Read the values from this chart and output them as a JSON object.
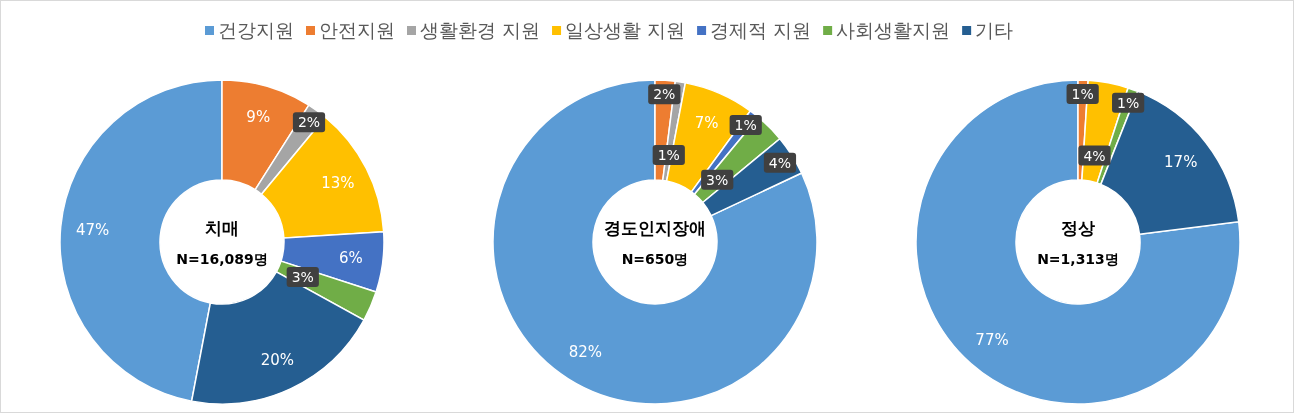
{
  "chart_data": [
    {
      "type": "donut",
      "title": "치매",
      "subtitle": "N=16,089명",
      "legend": "top",
      "categories": [
        "건강지원",
        "안전지원",
        "생활환경 지원",
        "일상생활 지원",
        "경제적 지원",
        "사회생활지원",
        "기타"
      ],
      "values": [
        47,
        9,
        2,
        13,
        6,
        3,
        20
      ],
      "colors": [
        "#5b9bd5",
        "#ed7d31",
        "#a5a5a5",
        "#ffc000",
        "#4472c4",
        "#70ad47",
        "#255e91"
      ],
      "value_labels": [
        "47%",
        "9%",
        "2%",
        "13%",
        "6%",
        "3%",
        "20%"
      ]
    },
    {
      "type": "donut",
      "title": "경도인지장애",
      "subtitle": "N=650명",
      "categories": [
        null,
        null,
        null,
        null,
        null,
        null,
        null
      ],
      "values": [
        82,
        2,
        1,
        7,
        1,
        3,
        4
      ],
      "colors": [
        "#5b9bd5",
        "#ed7d31",
        "#a5a5a5",
        "#ffc000",
        "#4472c4",
        "#70ad47",
        "#255e91"
      ],
      "value_labels": [
        "82%",
        "2%",
        "1%",
        "7%",
        "1%",
        "3%",
        "4%"
      ]
    },
    {
      "type": "donut",
      "title": "정상",
      "subtitle": "N=1,313명",
      "categories": [
        null,
        null,
        null,
        null,
        null,
        null,
        null
      ],
      "values": [
        77,
        1,
        null,
        4,
        null,
        1,
        17
      ],
      "colors": [
        "#5b9bd5",
        "#ed7d31",
        null,
        "#ffc000",
        null,
        "#70ad47",
        "#255e91"
      ],
      "value_labels": [
        "77%",
        "1%",
        null,
        "4%",
        null,
        "1%",
        "17%"
      ]
    }
  ]
}
